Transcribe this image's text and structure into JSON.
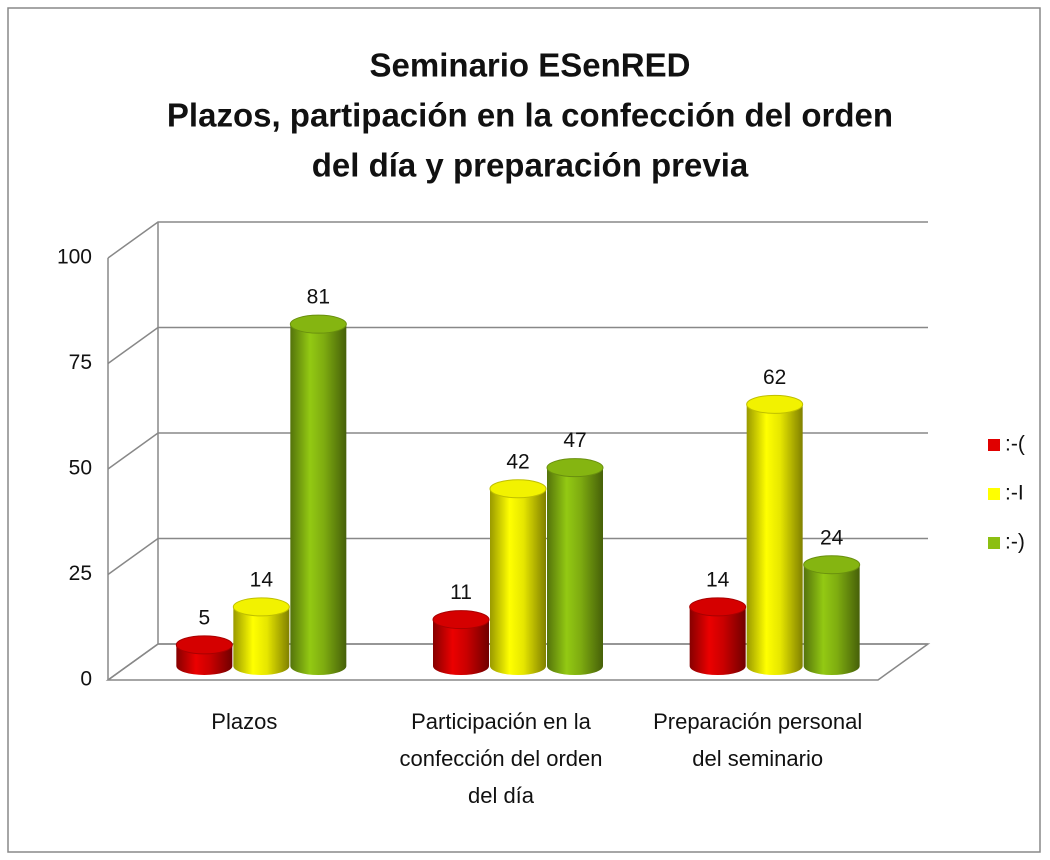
{
  "chart_data": {
    "type": "bar3d",
    "title": [
      "Seminario ESenRED",
      "Plazos, partipación en la confección del orden",
      "del día y preparación previa"
    ],
    "categories": [
      "Plazos",
      "Participación en la confección del orden del día",
      "Preparación personal del seminario"
    ],
    "series": [
      {
        "name": ":-(",
        "color": "#e00000",
        "values": [
          5,
          11,
          14
        ]
      },
      {
        "name": ":-I",
        "color": "#ffff00",
        "values": [
          14,
          42,
          62
        ]
      },
      {
        "name": ":-)",
        "color": "#8cbf12",
        "values": [
          81,
          47,
          24
        ]
      }
    ],
    "ylim": [
      0,
      100
    ],
    "yticks": [
      0,
      25,
      50,
      75,
      100
    ],
    "grid": true,
    "legend": "right"
  }
}
